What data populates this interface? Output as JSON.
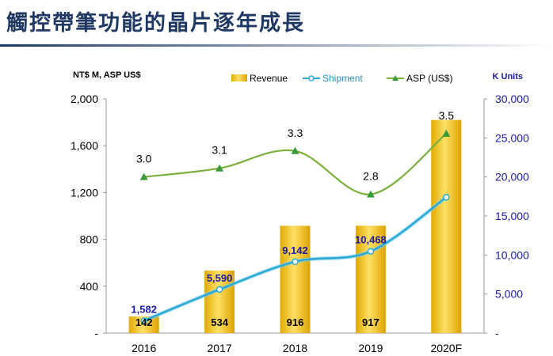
{
  "title": "觸控帶筆功能的晶片逐年成長",
  "chart_data": {
    "type": "bar",
    "categories": [
      "2016",
      "2017",
      "2018",
      "2019",
      "2020F"
    ],
    "series": [
      {
        "name": "Revenue",
        "type": "bar",
        "axis": "left",
        "color": "#f2c500",
        "values": [
          142,
          534,
          916,
          917,
          1820
        ],
        "labels": [
          "142",
          "534",
          "916",
          "917",
          ""
        ]
      },
      {
        "name": "Shipment",
        "type": "line",
        "axis": "right",
        "color": "#2aa9d6",
        "values": [
          1582,
          5590,
          9142,
          10468,
          17400
        ],
        "labels": [
          "1,582",
          "5,590",
          "9,142",
          "10,468",
          ""
        ]
      },
      {
        "name": "ASP (US$)",
        "type": "line",
        "axis": "asp",
        "color": "#7ab03c",
        "values": [
          3.0,
          3.1,
          3.3,
          2.8,
          3.5
        ],
        "labels": [
          "3.0",
          "3.1",
          "3.3",
          "2.8",
          "3.5"
        ]
      }
    ],
    "ylabel_left": "NT$ M, ASP US$",
    "ylabel_right": "K Units",
    "ylim_left": [
      0,
      2000
    ],
    "ylim_right": [
      0,
      30000
    ],
    "yticks_left": [
      "-",
      "400",
      "800",
      "1,200",
      "1,600",
      "2,000"
    ],
    "yticks_right": [
      "-",
      "5,000",
      "10,000",
      "15,000",
      "20,000",
      "25,000",
      "30,000"
    ],
    "legend": [
      "Revenue",
      "Shipment",
      "ASP (US$)"
    ],
    "legend_position": "top-right",
    "grid": false
  }
}
